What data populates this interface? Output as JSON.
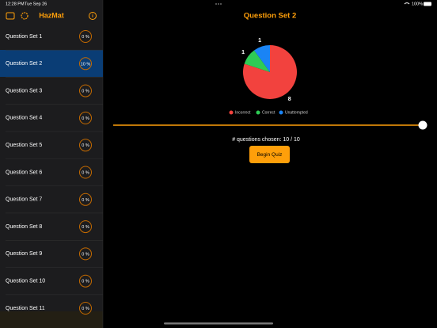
{
  "status_bar": {
    "time": "12:28 PM",
    "date": "Tue Sep 26",
    "battery": "100%"
  },
  "sidebar": {
    "title": "HazMat",
    "items": [
      {
        "label": "Question Set 1",
        "progress": "0 %"
      },
      {
        "label": "Question Set 2",
        "progress": "10 %"
      },
      {
        "label": "Question Set 3",
        "progress": "0 %"
      },
      {
        "label": "Question Set 4",
        "progress": "0 %"
      },
      {
        "label": "Question Set 5",
        "progress": "0 %"
      },
      {
        "label": "Question Set 6",
        "progress": "0 %"
      },
      {
        "label": "Question Set 7",
        "progress": "0 %"
      },
      {
        "label": "Question Set 8",
        "progress": "0 %"
      },
      {
        "label": "Question Set 9",
        "progress": "0 %"
      },
      {
        "label": "Question Set 10",
        "progress": "0 %"
      },
      {
        "label": "Question Set 11",
        "progress": "0 %"
      }
    ]
  },
  "main": {
    "title": "Question Set 2",
    "pie": {
      "categories": [
        "Incorrect",
        "Correct",
        "Unattempted"
      ],
      "values": [
        8,
        1,
        1
      ],
      "colors": [
        "#f2423e",
        "#2ecc55",
        "#1a84f5"
      ]
    },
    "questions_chosen": "# questions chosen:  10 / 10",
    "button": "Begin Quiz"
  }
}
